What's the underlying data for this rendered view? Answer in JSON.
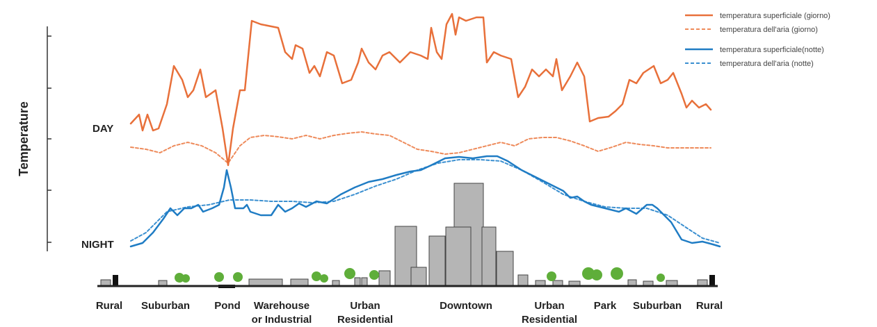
{
  "axis_label": "Temperature",
  "day_label": "DAY",
  "night_label": "NIGHT",
  "legend": [
    "temperatura superficiale (giorno)",
    "temperatura dell'aria (giorno)",
    "temperatura superficiale(notte)",
    "temperatura dell'aria (notte)"
  ],
  "zones": [
    {
      "lines": [
        "Rural"
      ]
    },
    {
      "lines": [
        "Suburban"
      ]
    },
    {
      "lines": [
        "Pond"
      ]
    },
    {
      "lines": [
        "Warehouse",
        "or Industrial"
      ]
    },
    {
      "lines": [
        "Urban",
        "Residential"
      ]
    },
    {
      "lines": [
        "Downtown"
      ]
    },
    {
      "lines": [
        "Urban",
        "Residential"
      ]
    },
    {
      "lines": [
        "Park"
      ]
    },
    {
      "lines": [
        "Suburban"
      ]
    },
    {
      "lines": [
        "Rural"
      ]
    }
  ]
}
